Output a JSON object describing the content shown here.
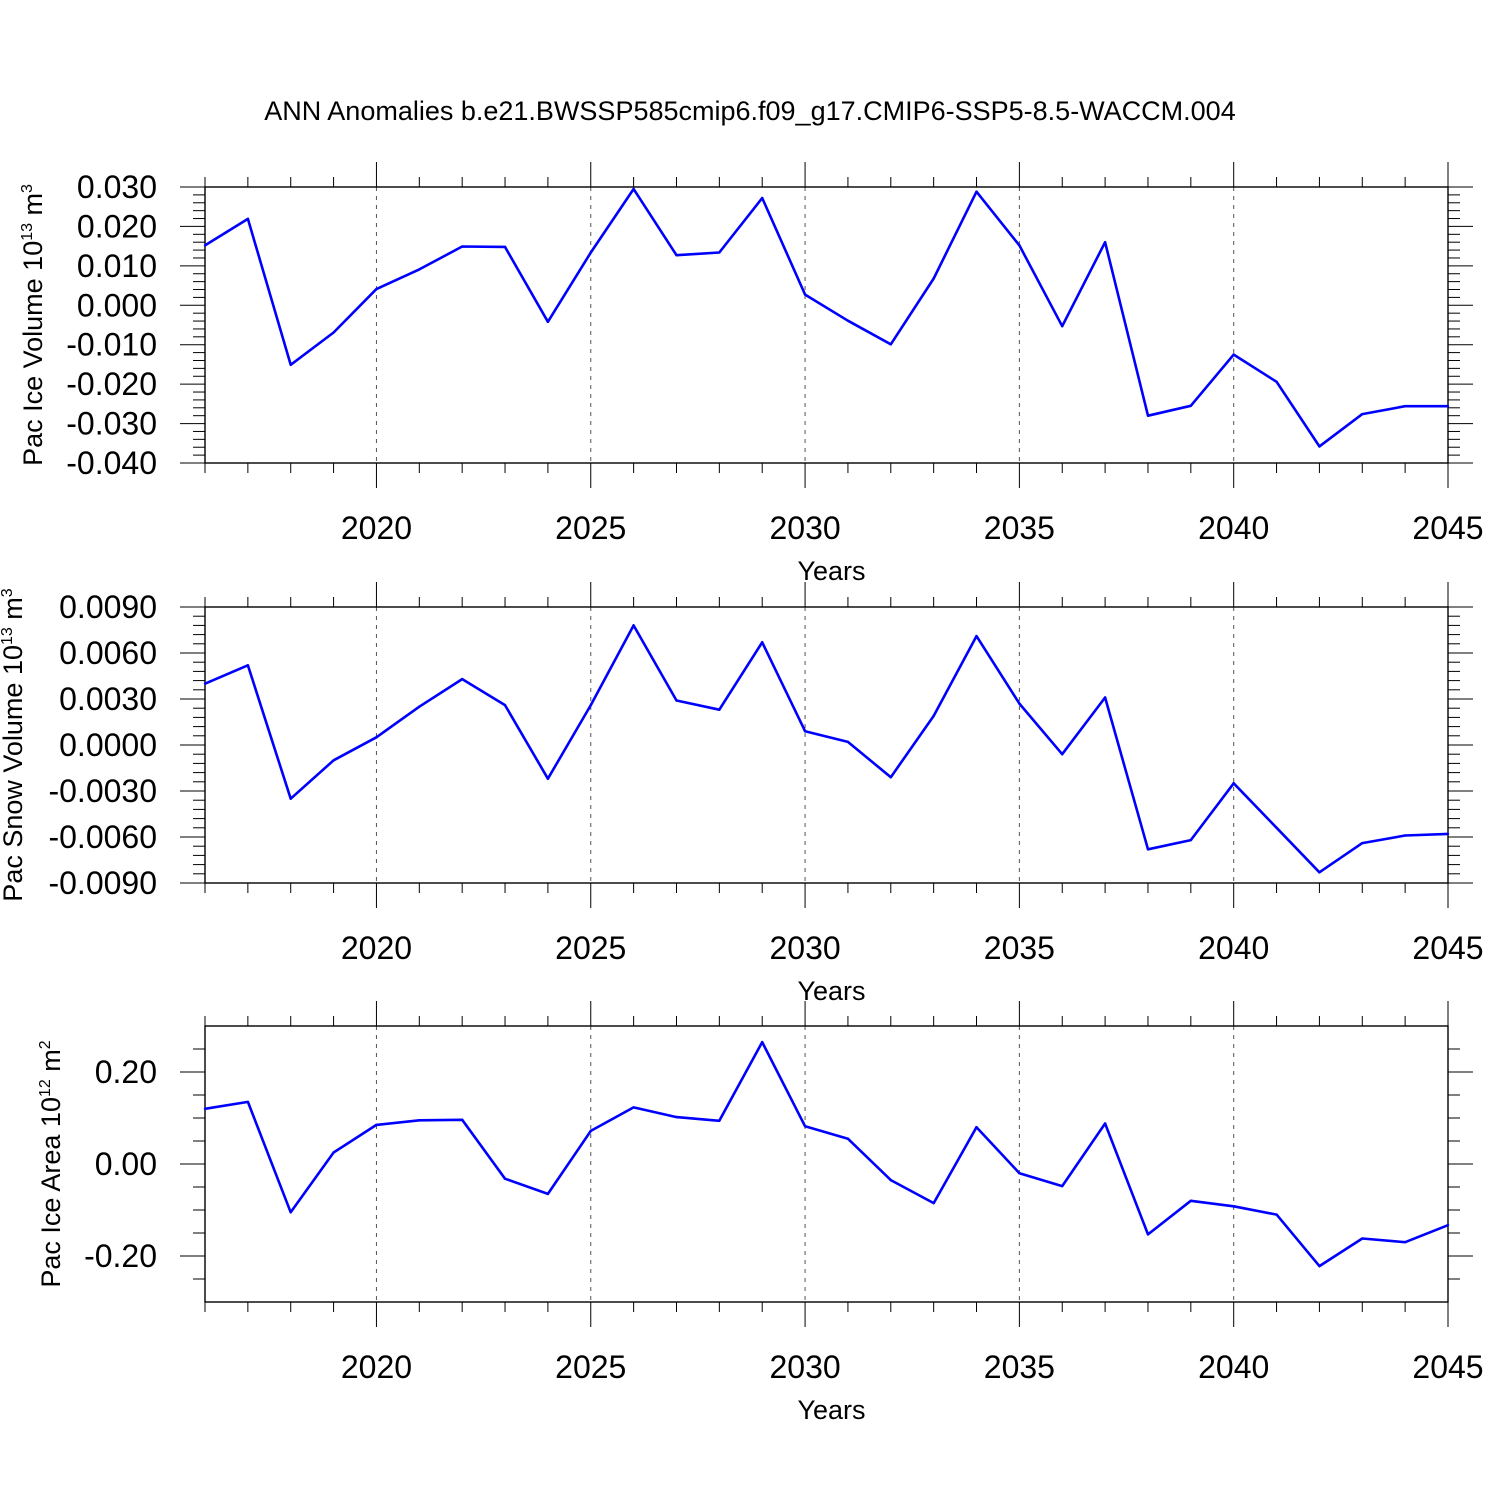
{
  "title": "ANN Anomalies b.e21.BWSSP585cmip6.f09_g17.CMIP6-SSP5-8.5-WACCM.004",
  "colors": {
    "series": "#0000ff",
    "axes": "#000000",
    "grid": "#555555"
  },
  "chart_data": [
    {
      "type": "line",
      "ylabel_main": "Pac Ice Volume 10",
      "ylabel_exp": "13",
      "ylabel_unit": "m",
      "ylabel_unit_exp": "3",
      "xlabel": "Years",
      "xlim": [
        2016,
        2045
      ],
      "ylim": [
        -0.04,
        0.03
      ],
      "yticks": [
        0.03,
        0.02,
        0.01,
        0.0,
        -0.01,
        -0.02,
        -0.03,
        -0.04
      ],
      "ytick_labels": [
        "0.030",
        "0.020",
        "0.010",
        "0.000",
        "-0.010",
        "-0.020",
        "-0.030",
        "-0.040"
      ],
      "xticks": [
        2020,
        2025,
        2030,
        2035,
        2040,
        2045
      ],
      "xtick_labels": [
        "2020",
        "2025",
        "2030",
        "2035",
        "2040",
        "2045"
      ],
      "x": [
        2016,
        2017,
        2018,
        2019,
        2020,
        2021,
        2022,
        2023,
        2024,
        2025,
        2026,
        2027,
        2028,
        2029,
        2030,
        2031,
        2032,
        2033,
        2034,
        2035,
        2036,
        2037,
        2038,
        2039,
        2040,
        2041,
        2042,
        2043,
        2044,
        2045
      ],
      "values": [
        0.0152,
        0.0219,
        -0.0151,
        -0.0069,
        0.0041,
        0.0091,
        0.0149,
        0.0148,
        -0.0042,
        0.0134,
        0.0295,
        0.0127,
        0.0134,
        0.0272,
        0.0027,
        -0.0039,
        -0.0099,
        0.0068,
        0.0288,
        0.0152,
        -0.0053,
        0.016,
        -0.028,
        -0.0255,
        -0.0125,
        -0.0194,
        -0.0358,
        -0.0276,
        -0.0256,
        -0.0256
      ]
    },
    {
      "type": "line",
      "ylabel_main": "Pac Snow Volume 10",
      "ylabel_exp": "13",
      "ylabel_unit": "m",
      "ylabel_unit_exp": "3",
      "xlabel": "Years",
      "xlim": [
        2016,
        2045
      ],
      "ylim": [
        -0.009,
        0.009
      ],
      "yticks": [
        0.009,
        0.006,
        0.003,
        0.0,
        -0.003,
        -0.006,
        -0.009
      ],
      "ytick_labels": [
        "0.0090",
        "0.0060",
        "0.0030",
        "0.0000",
        "-0.0030",
        "-0.0060",
        "-0.0090"
      ],
      "xticks": [
        2020,
        2025,
        2030,
        2035,
        2040,
        2045
      ],
      "xtick_labels": [
        "2020",
        "2025",
        "2030",
        "2035",
        "2040",
        "2045"
      ],
      "x": [
        2016,
        2017,
        2018,
        2019,
        2020,
        2021,
        2022,
        2023,
        2024,
        2025,
        2026,
        2027,
        2028,
        2029,
        2030,
        2031,
        2032,
        2033,
        2034,
        2035,
        2036,
        2037,
        2038,
        2039,
        2040,
        2041,
        2042,
        2043,
        2044,
        2045
      ],
      "values": [
        0.004,
        0.0052,
        -0.0035,
        -0.001,
        0.0005,
        0.0025,
        0.0043,
        0.0026,
        -0.0022,
        0.0026,
        0.0078,
        0.0029,
        0.0023,
        0.0067,
        0.0009,
        0.0002,
        -0.0021,
        0.0019,
        0.0071,
        0.0027,
        -0.0006,
        0.0031,
        -0.0068,
        -0.0062,
        -0.0025,
        -0.0054,
        -0.0083,
        -0.0064,
        -0.0059,
        -0.0058
      ]
    },
    {
      "type": "line",
      "ylabel_main": "Pac Ice Area 10",
      "ylabel_exp": "12",
      "ylabel_unit": "m",
      "ylabel_unit_exp": "2",
      "xlabel": "Years",
      "xlim": [
        2016,
        2045
      ],
      "ylim": [
        -0.3,
        0.3
      ],
      "yticks": [
        0.2,
        0.0,
        -0.2
      ],
      "ytick_labels": [
        "0.20",
        "0.00",
        "-0.20"
      ],
      "minor_yticks": [
        0.25,
        0.15,
        0.1,
        0.05,
        -0.05,
        -0.1,
        -0.15,
        -0.25
      ],
      "xticks": [
        2020,
        2025,
        2030,
        2035,
        2040,
        2045
      ],
      "xtick_labels": [
        "2020",
        "2025",
        "2030",
        "2035",
        "2040",
        "2045"
      ],
      "x": [
        2016,
        2017,
        2018,
        2019,
        2020,
        2021,
        2022,
        2023,
        2024,
        2025,
        2026,
        2027,
        2028,
        2029,
        2030,
        2031,
        2032,
        2033,
        2034,
        2035,
        2036,
        2037,
        2038,
        2039,
        2040,
        2041,
        2042,
        2043,
        2044,
        2045
      ],
      "values": [
        0.12,
        0.135,
        -0.105,
        0.025,
        0.085,
        0.095,
        0.096,
        -0.032,
        -0.065,
        0.072,
        0.123,
        0.102,
        0.094,
        0.265,
        0.082,
        0.055,
        -0.035,
        -0.085,
        0.08,
        -0.02,
        -0.048,
        0.088,
        -0.153,
        -0.08,
        -0.092,
        -0.11,
        -0.222,
        -0.162,
        -0.17,
        -0.133
      ]
    }
  ]
}
